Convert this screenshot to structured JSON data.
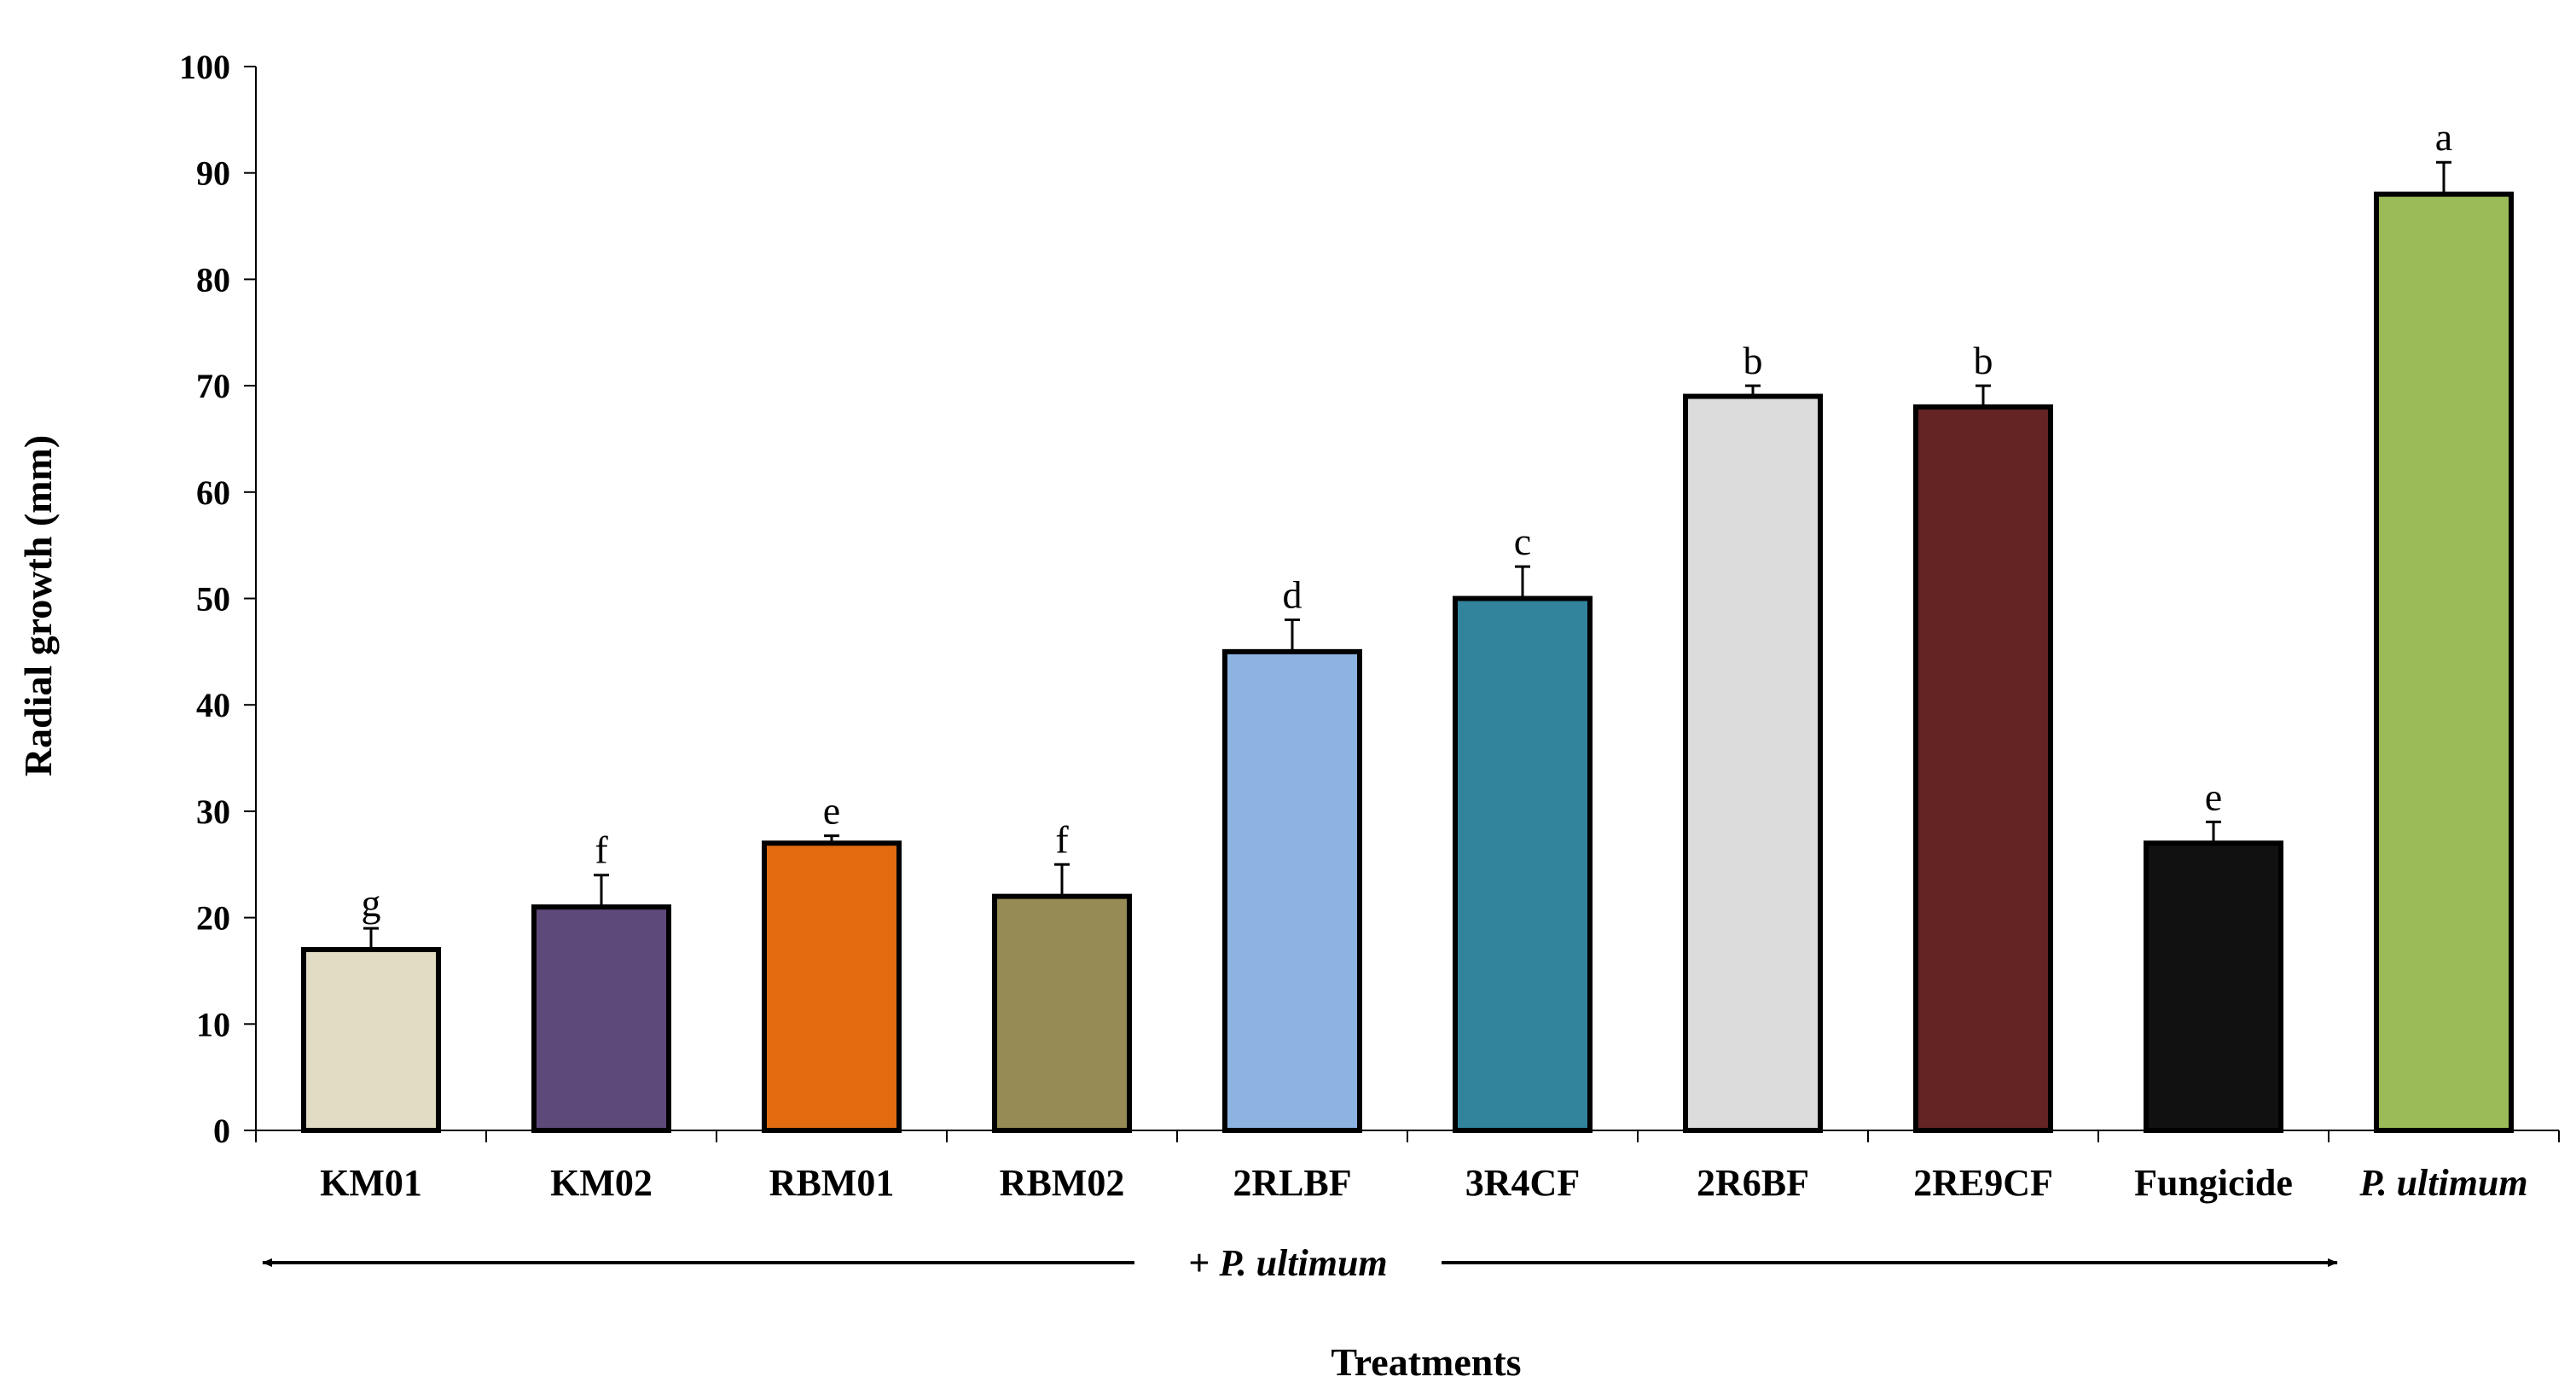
{
  "chart_data": {
    "type": "bar",
    "title": "",
    "xlabel": "Treatments",
    "ylabel": "Radial growth  (mm)",
    "ylim": [
      0,
      100
    ],
    "yticks": [
      0,
      10,
      20,
      30,
      40,
      50,
      60,
      70,
      80,
      90,
      100
    ],
    "grid": false,
    "categories": [
      "KM01",
      "KM02",
      "RBM01",
      "RBM02",
      "2RLBF",
      "3R4CF",
      "2R6BF",
      "2RE9CF",
      "Fungicide",
      "P. ultimum"
    ],
    "italic_categories": [
      "P. ultimum"
    ],
    "values": [
      17,
      21,
      27,
      22,
      45,
      50,
      69,
      68,
      27,
      88
    ],
    "errors": [
      2,
      3,
      0.7,
      3,
      3,
      3,
      1,
      2,
      2,
      3
    ],
    "letters": [
      "g",
      "f",
      "e",
      "f",
      "d",
      "c",
      "b",
      "b",
      "e",
      "a"
    ],
    "colors": [
      "#e2dcc4",
      "#5e4a7a",
      "#e26b10",
      "#968b55",
      "#8db3e2",
      "#31849b",
      "#dcdcdc",
      "#632423",
      "#111111",
      "#9bbb59"
    ],
    "bracket_annotation": {
      "prefix": "+ ",
      "label": "P. ultimum",
      "spans": [
        "KM01",
        "Fungicide"
      ]
    }
  }
}
